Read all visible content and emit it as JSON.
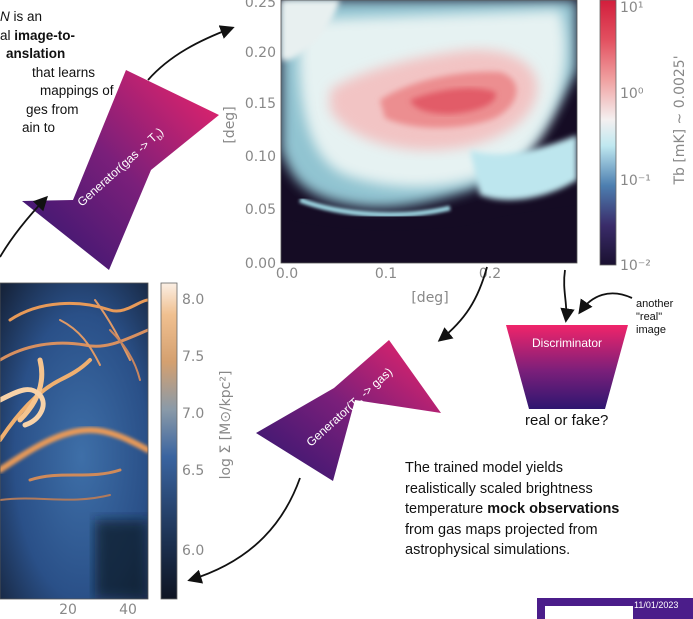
{
  "intro": {
    "l1_pre": "N",
    "l1_post": " is an",
    "l2_pre": "al ",
    "l2_bold": "image-to-",
    "l3_bold": "anslation",
    "l4": "that learns",
    "l5": "mappings of",
    "l6": "ges from",
    "l7": "ain to"
  },
  "generator_top": {
    "label": "Generator(gas -> Tb)",
    "text": "Generator(gas -> T",
    "sub": "b",
    "tail": ")"
  },
  "generator_bottom": {
    "label": "Generator(Tb -> gas)",
    "text": "Generator(T",
    "sub": "b",
    "tail": " -> gas)"
  },
  "discriminator": {
    "label": "Discriminator"
  },
  "real_or_fake": "real or fake?",
  "another_real": [
    "another",
    "\"real\"",
    "image"
  ],
  "outro": {
    "l1": "The trained model yields",
    "l2": "realistically scaled brightness",
    "l3_pre": "temperature ",
    "l3_bold": "mock observations",
    "l4": "from gas maps projected from",
    "l5": "astrophysical simulations."
  },
  "top_map": {
    "ylabel": "[deg]",
    "xlabel": "[deg]",
    "yticks": [
      "0.00",
      "0.05",
      "0.10",
      "0.15",
      "0.20",
      "0.25"
    ],
    "xticks": [
      "0.0",
      "0.1",
      "0.2"
    ],
    "colorbar_label": "Tb [mK] ~ 0.0025'",
    "colorbar_ticks": [
      "10⁻²",
      "10⁻¹",
      "10⁰",
      "10¹"
    ]
  },
  "gas_map": {
    "colorbar_label": "log Σ [M⊙/kpc²]",
    "colorbar_ticks": [
      "8.0",
      "7.5",
      "7.0",
      "6.5",
      "6.0"
    ],
    "xticks": [
      "20",
      "40"
    ]
  },
  "footer": {
    "date": "11/01/2023"
  },
  "colors": {
    "accent": "#e8246c",
    "generator_dark": "#3a1a78",
    "footer": "#4b1d8a"
  }
}
